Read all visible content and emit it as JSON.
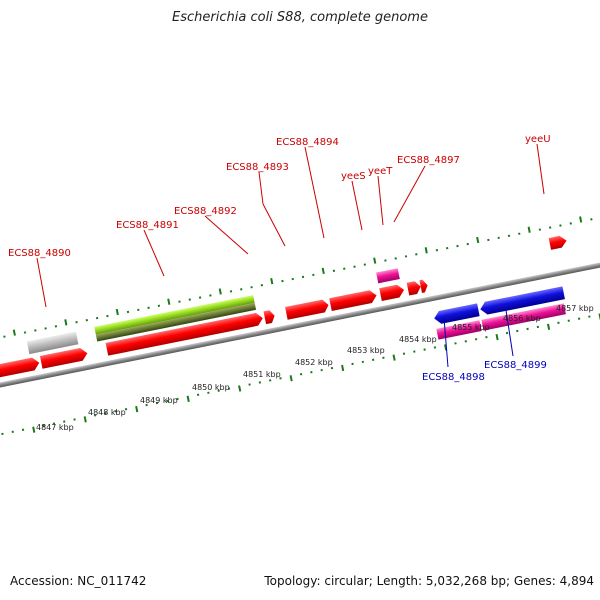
{
  "header": {
    "title": "Escherichia coli S88, complete genome"
  },
  "footer": {
    "accession": "Accession: NC_011742",
    "topology": "Topology: circular; Length: 5,032,268 bp; Genes: 4,894"
  },
  "colors": {
    "forward_gene": "#ff0000",
    "reverse_gene": "#1010dd",
    "rna": "#ee1199",
    "pseudo": "#c0c0c0",
    "highlight": "#99dd22",
    "tick": "#1a7a1a",
    "label_forward": "#cc0000",
    "label_reverse": "#0000bb"
  },
  "scale_labels": [
    "4847 kbp",
    "4848 kbp",
    "4849 kbp",
    "4850 kbp",
    "4851 kbp",
    "4852 kbp",
    "4853 kbp",
    "4854 kbp",
    "4855 kbp",
    "4856 kbp",
    "4857 kbp"
  ],
  "gene_labels": [
    {
      "id": "ecs88-4890",
      "text": "ECS88_4890",
      "strand": "forward"
    },
    {
      "id": "ecs88-4891",
      "text": "ECS88_4891",
      "strand": "forward"
    },
    {
      "id": "ecs88-4892",
      "text": "ECS88_4892",
      "strand": "forward"
    },
    {
      "id": "ecs88-4893",
      "text": "ECS88_4893",
      "strand": "forward"
    },
    {
      "id": "ecs88-4894",
      "text": "ECS88_4894",
      "strand": "forward"
    },
    {
      "id": "yees",
      "text": "yeeS",
      "strand": "forward"
    },
    {
      "id": "yeet",
      "text": "yeeT",
      "strand": "forward"
    },
    {
      "id": "ecs88-4897",
      "text": "ECS88_4897",
      "strand": "forward"
    },
    {
      "id": "yeeu",
      "text": "yeeU",
      "strand": "forward"
    },
    {
      "id": "ecs88-4898",
      "text": "ECS88_4898",
      "strand": "reverse"
    },
    {
      "id": "ecs88-4899",
      "text": "ECS88_4899",
      "strand": "reverse"
    }
  ]
}
